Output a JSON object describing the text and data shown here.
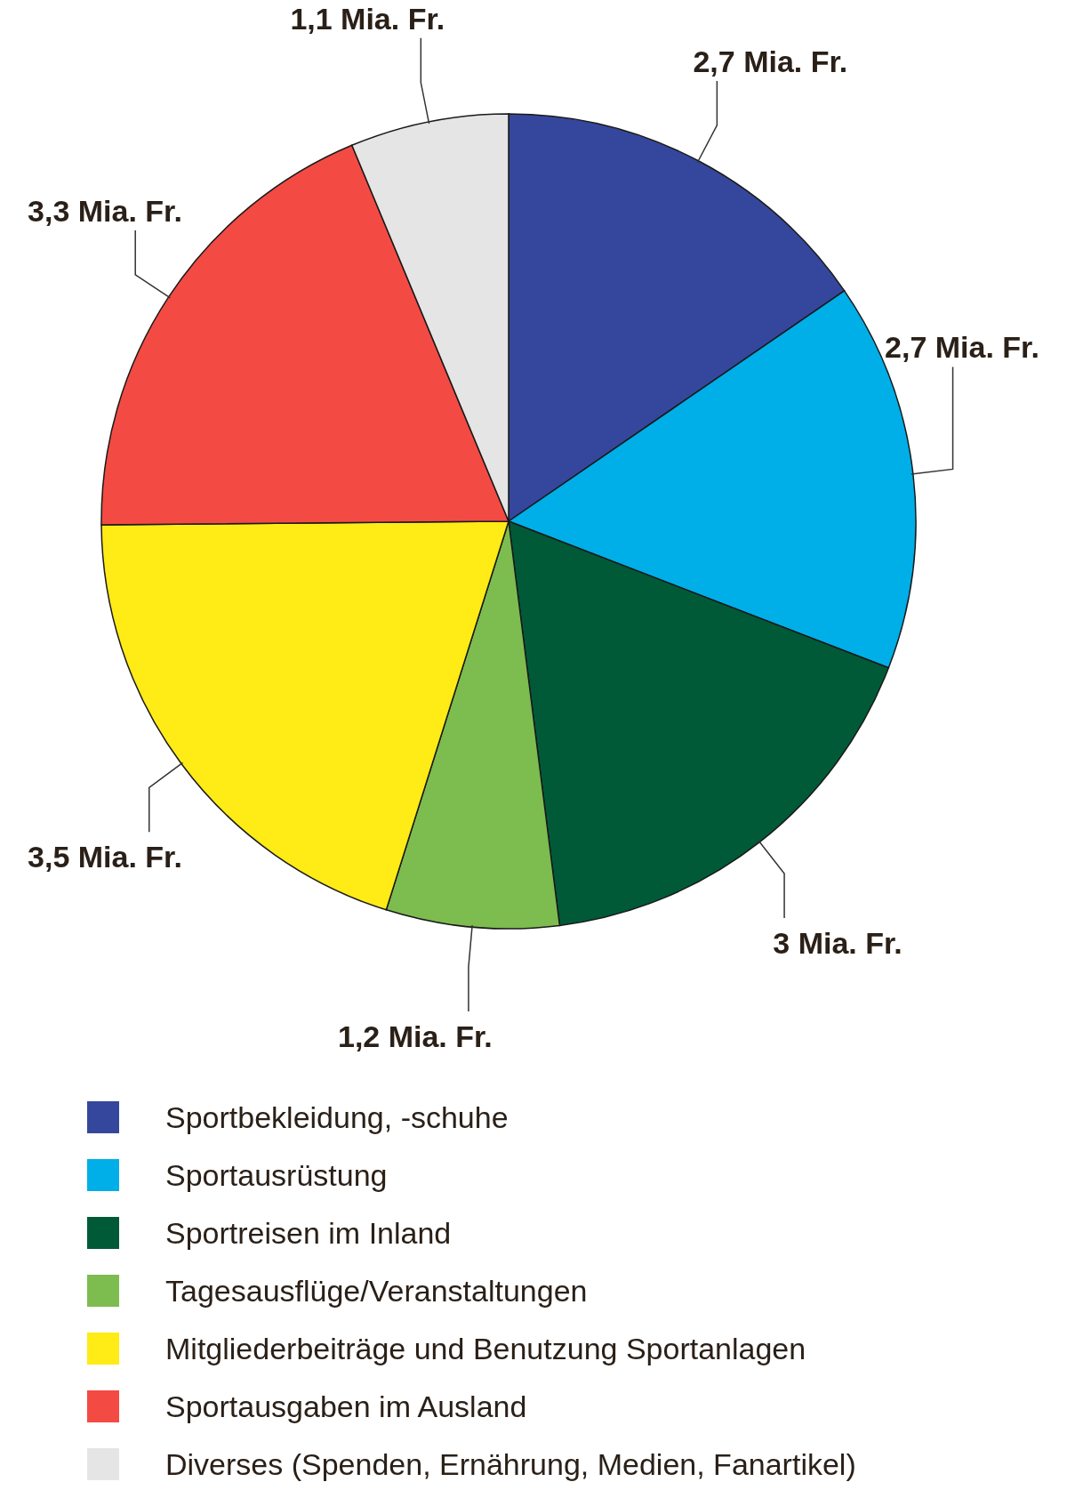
{
  "chart_data": {
    "type": "pie",
    "categories": [
      "Sportbekleidung, -schuhe",
      "Sportausrüstung",
      "Sportreisen im Inland",
      "Tagesausflüge/Veranstaltungen",
      "Mitgliederbeiträge und Benutzung Sportanlagen",
      "Sportausgaben im Ausland",
      "Diverses (Spenden, Ernährung, Medien, Fanartikel)"
    ],
    "values": [
      2.7,
      2.7,
      3,
      1.2,
      3.5,
      3.3,
      1.1
    ],
    "colors": [
      "#35479c",
      "#00aee8",
      "#005a38",
      "#7dbc4f",
      "#ffeb16",
      "#f34b43",
      "#e5e5e5"
    ],
    "value_labels": [
      "2,7 Mia. Fr.",
      "2,7 Mia. Fr.",
      "3 Mia. Fr.",
      "1,2 Mia. Fr.",
      "3,5 Mia. Fr.",
      "3,3 Mia. Fr.",
      "1,1 Mia. Fr."
    ],
    "legend": "bottom"
  }
}
